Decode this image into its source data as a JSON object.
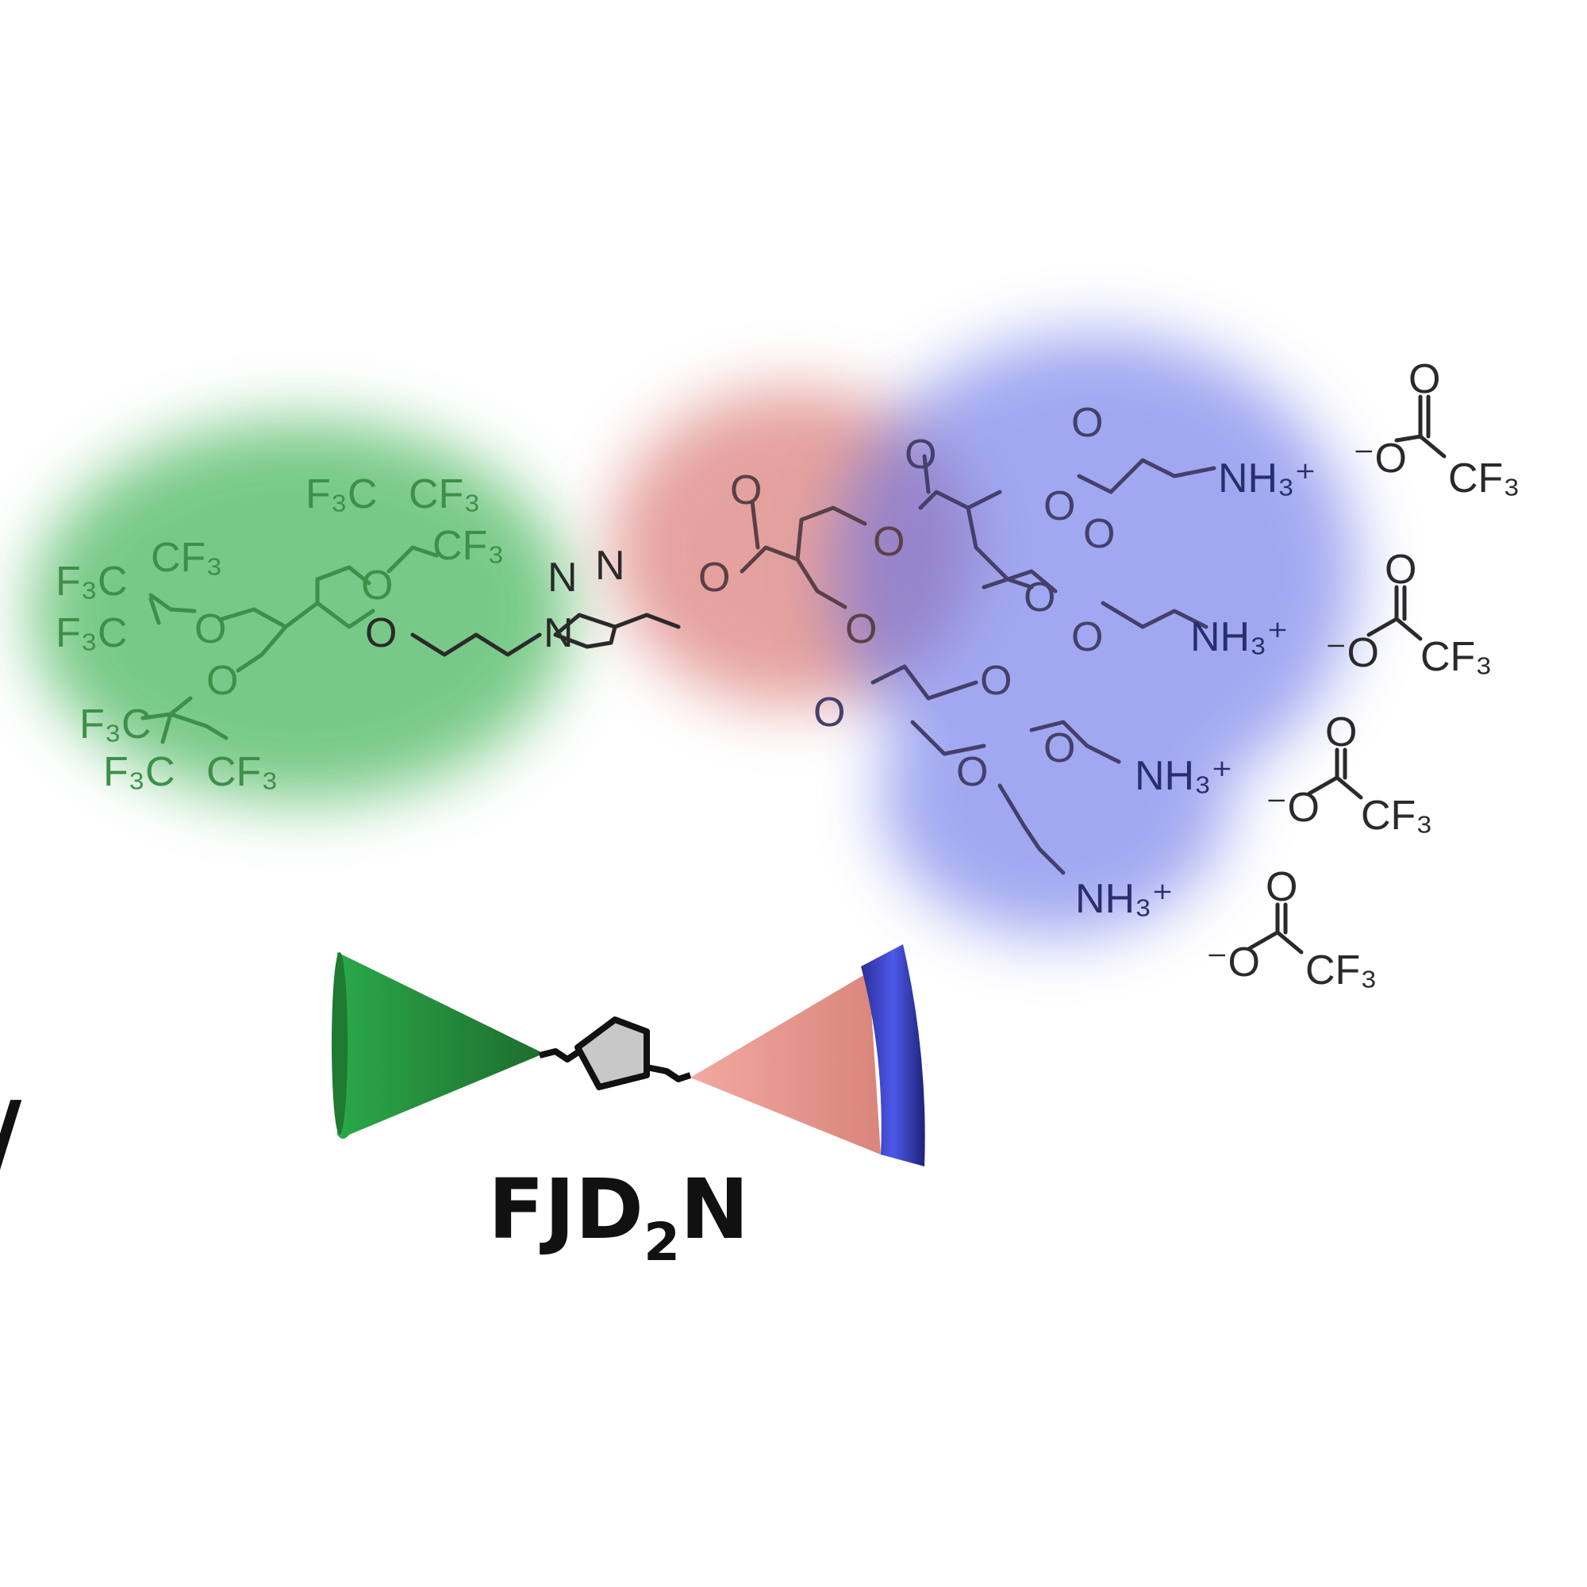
{
  "colors": {
    "fluorous": "#2fb34a",
    "core": "#e38a86",
    "amine": "#5560e0",
    "background": "#ffffff"
  },
  "labels": {
    "f3c_cf3_top_a": "F₃C",
    "f3c_cf3_top_b": "CF₃",
    "cf3_top_c": "CF₃",
    "f3c_left_a": "F₃C",
    "cf3_left_b": "CF₃",
    "f3c_left_c": "F₃C",
    "f3c_bot_a": "F₃C",
    "f3c_bot_b": "F₃C",
    "cf3_bot_c": "CF₃",
    "o": "O",
    "n": "N",
    "nh3": "NH₃⁺",
    "anion_o": "⁻O",
    "anion_cf3": "CF₃"
  },
  "title": {
    "prefix": "FJD",
    "subscript": "2",
    "suffix": "N"
  },
  "edge_glyph": "/"
}
